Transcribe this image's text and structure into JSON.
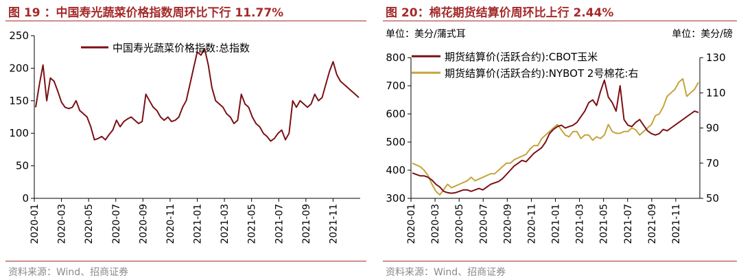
{
  "charts": {
    "left": {
      "title": "图 19 ：中国寿光蔬菜价格指数周环比下行 11.77%",
      "source": "资料来源：Wind、招商证券"
    },
    "right": {
      "title": "图 20：棉花期货结算价周环比上行 2.44%",
      "source": "资料来源：Wind、招商证券",
      "unit_left": "单位：美分/蒲式耳",
      "unit_right": "单位：美分/磅"
    }
  },
  "colors": {
    "title": "#a52a2a",
    "corn": "#7b0f14",
    "cotton": "#c5a33a",
    "vegetable": "#7b0f14",
    "axis": "#000000",
    "source": "#8a8a8a"
  },
  "chart_data": [
    {
      "type": "line",
      "title": "中国寿光蔬菜价格指数周环比下行 11.77%",
      "ylim": [
        0,
        250
      ],
      "yticks": [
        0,
        50,
        100,
        150,
        200,
        250
      ],
      "x_tick_labels": [
        "2020-01",
        "2020-03",
        "2020-05",
        "2020-07",
        "2020-09",
        "2020-11",
        "2021-01",
        "2021-03",
        "2021-05",
        "2021-07",
        "2021-09",
        "2021-11"
      ],
      "series": [
        {
          "name": "中国寿光蔬菜价格指数:总指数",
          "values": [
            140,
            175,
            205,
            150,
            185,
            180,
            165,
            148,
            140,
            138,
            140,
            150,
            135,
            130,
            125,
            110,
            90,
            92,
            95,
            90,
            98,
            105,
            120,
            110,
            118,
            122,
            125,
            120,
            115,
            118,
            160,
            150,
            140,
            135,
            125,
            120,
            125,
            118,
            120,
            125,
            140,
            150,
            175,
            200,
            225,
            220,
            230,
            205,
            170,
            150,
            145,
            140,
            130,
            125,
            115,
            120,
            160,
            145,
            140,
            125,
            115,
            110,
            100,
            95,
            88,
            92,
            100,
            105,
            90,
            100,
            150,
            140,
            150,
            145,
            140,
            145,
            160,
            150,
            155,
            175,
            195,
            210,
            190,
            180,
            175,
            170,
            165,
            160,
            155
          ]
        }
      ]
    },
    {
      "type": "line",
      "title": "棉花期货结算价周环比上行 2.44%",
      "ylim": [
        300,
        800
      ],
      "y2lim": [
        50,
        130
      ],
      "yticks": [
        300,
        400,
        500,
        600,
        700,
        800
      ],
      "y2ticks": [
        50,
        70,
        90,
        110,
        130
      ],
      "x_tick_labels": [
        "2020-01",
        "2020-03",
        "2020-05",
        "2020-07",
        "2020-09",
        "2020-11",
        "2021-01",
        "2021-03",
        "2021-05",
        "2021-07",
        "2021-09",
        "2021-11"
      ],
      "series": [
        {
          "name": "期货结算价(活跃合约):CBOT玉米",
          "axis": "left",
          "values": [
            390,
            385,
            380,
            380,
            375,
            365,
            350,
            340,
            325,
            320,
            318,
            320,
            325,
            330,
            330,
            325,
            330,
            335,
            330,
            340,
            350,
            355,
            360,
            370,
            385,
            400,
            415,
            425,
            435,
            430,
            445,
            460,
            470,
            480,
            500,
            530,
            545,
            555,
            560,
            550,
            555,
            560,
            570,
            590,
            610,
            640,
            650,
            630,
            680,
            720,
            660,
            640,
            610,
            700,
            580,
            560,
            555,
            570,
            580,
            560,
            540,
            530,
            525,
            530,
            545,
            540,
            550,
            560,
            570,
            580,
            590,
            600,
            610,
            605
          ]
        },
        {
          "name": "期货结算价(活跃合约):NYBOT 2号棉花:右",
          "axis": "right",
          "values": [
            70,
            69,
            68,
            66,
            63,
            58,
            54,
            52,
            55,
            58,
            56,
            57,
            58,
            59,
            60,
            62,
            60,
            61,
            62,
            63,
            64,
            64,
            66,
            68,
            70,
            70,
            72,
            73,
            74,
            75,
            78,
            80,
            80,
            84,
            86,
            88,
            90,
            92,
            89,
            86,
            85,
            88,
            88,
            84,
            86,
            86,
            83,
            85,
            84,
            86,
            92,
            88,
            87,
            87,
            88,
            88,
            90,
            89,
            86,
            88,
            90,
            92,
            97,
            98,
            102,
            108,
            110,
            112,
            116,
            118,
            108,
            110,
            112,
            116
          ]
        }
      ]
    }
  ]
}
